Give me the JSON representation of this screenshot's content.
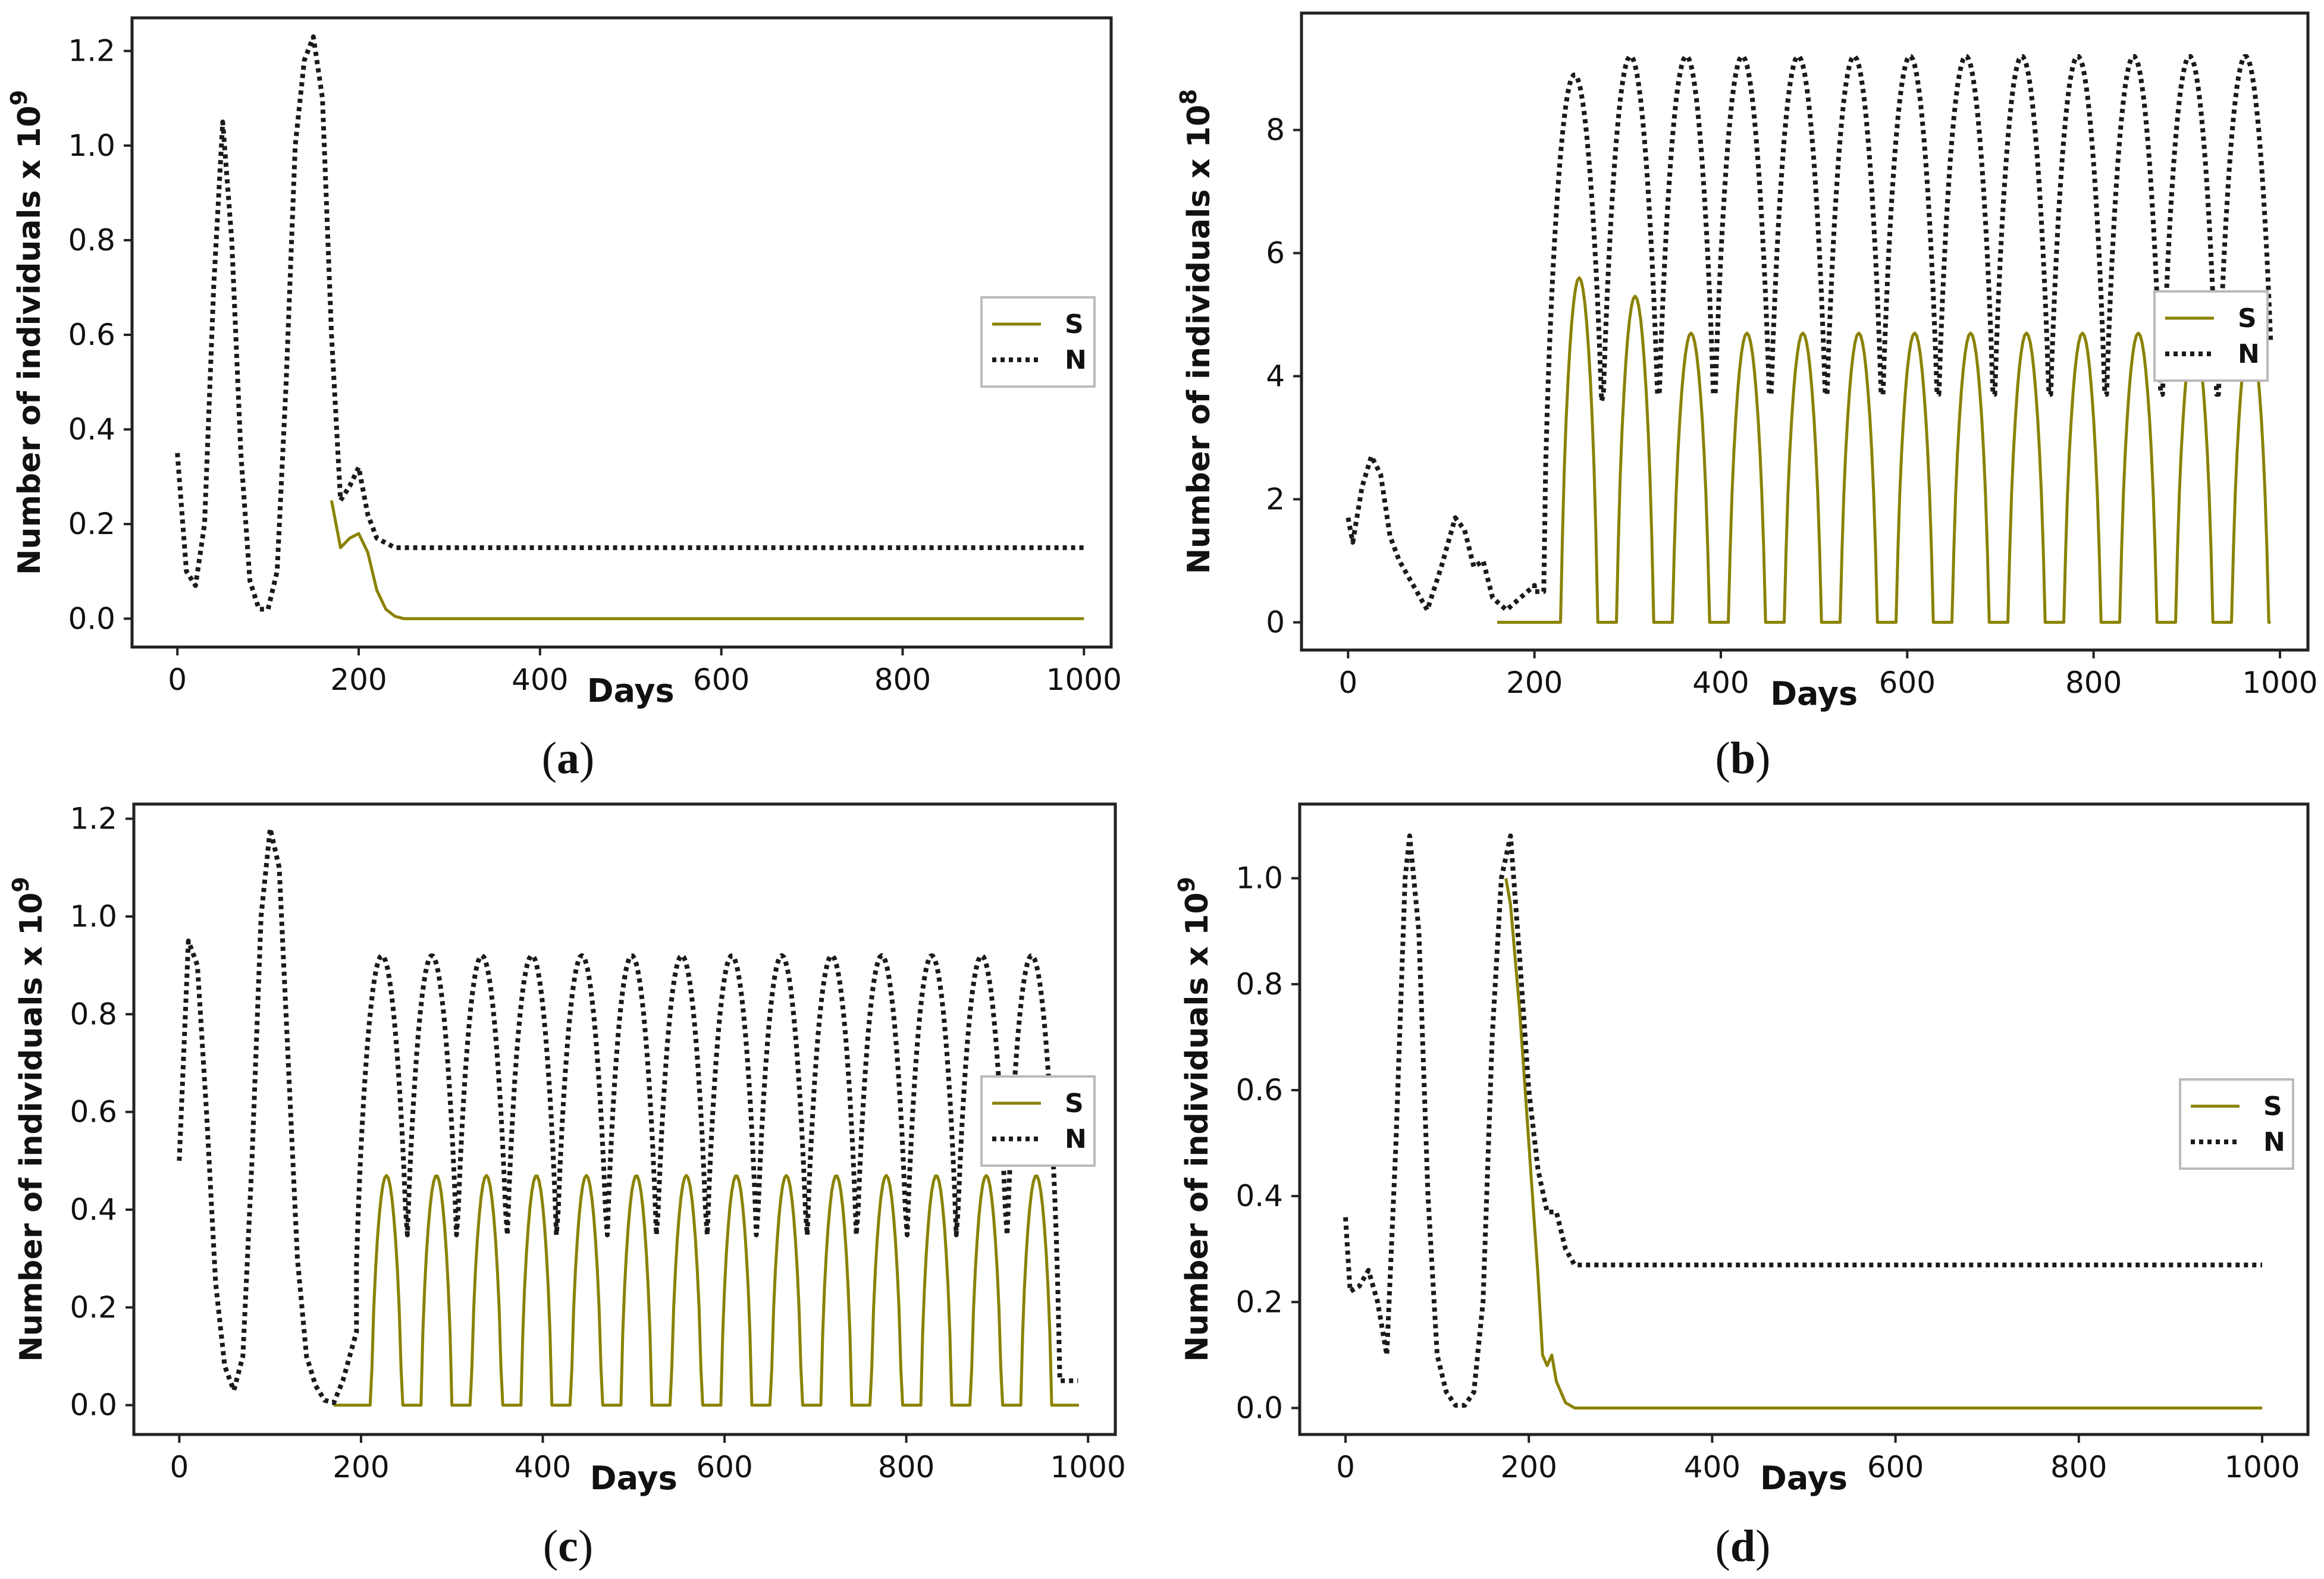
{
  "colors": {
    "series_S": "#8a8200",
    "series_N": "#1a1a1a",
    "axis": "#222222",
    "background": "#ffffff"
  },
  "chart_data": [
    {
      "type": "line",
      "panel": "(a)",
      "xlabel": "Days",
      "ylabel": "Number of individuals",
      "yscale_label": "x 10",
      "yscale_exp": "9",
      "xlim": [
        -50,
        1030
      ],
      "ylim": [
        -0.06,
        1.27
      ],
      "xticks": [
        0,
        200,
        400,
        600,
        800,
        1000
      ],
      "yticks": [
        0.0,
        0.2,
        0.4,
        0.6,
        0.8,
        1.0,
        1.2
      ],
      "ytick_labels": [
        "0.0",
        "0.2",
        "0.4",
        "0.6",
        "0.8",
        "1.0",
        "1.2"
      ],
      "legend": {
        "position": "right",
        "labels": [
          "S",
          "N"
        ]
      },
      "series": [
        {
          "name": "S",
          "style": "solid",
          "x": [
            170,
            180,
            190,
            200,
            210,
            220,
            230,
            240,
            250,
            1000
          ],
          "y": [
            0.25,
            0.15,
            0.17,
            0.18,
            0.14,
            0.06,
            0.02,
            0.005,
            0.0,
            0.0
          ]
        },
        {
          "name": "N",
          "style": "dotted",
          "x": [
            0,
            10,
            20,
            30,
            40,
            50,
            60,
            70,
            80,
            90,
            100,
            110,
            120,
            130,
            140,
            150,
            160,
            170,
            180,
            190,
            200,
            210,
            220,
            240,
            260,
            300,
            1000
          ],
          "y": [
            0.35,
            0.1,
            0.07,
            0.2,
            0.7,
            1.05,
            0.8,
            0.35,
            0.08,
            0.02,
            0.02,
            0.1,
            0.5,
            1.0,
            1.18,
            1.23,
            1.1,
            0.6,
            0.25,
            0.28,
            0.32,
            0.22,
            0.17,
            0.15,
            0.15,
            0.15,
            0.15
          ]
        }
      ]
    },
    {
      "type": "line",
      "panel": "(b)",
      "xlabel": "Days",
      "ylabel": "Number of individuals",
      "yscale_label": "x 10",
      "yscale_exp": "8",
      "xlim": [
        -50,
        1030
      ],
      "ylim": [
        -0.45,
        9.9
      ],
      "xticks": [
        0,
        200,
        400,
        600,
        800,
        1000
      ],
      "yticks": [
        0,
        2,
        4,
        6,
        8
      ],
      "ytick_labels": [
        "0",
        "2",
        "4",
        "6",
        "8"
      ],
      "legend": {
        "position": "right",
        "labels": [
          "S",
          "N"
        ]
      },
      "series": [
        {
          "name": "S",
          "style": "solid",
          "x": [],
          "y": []
        },
        {
          "name": "N",
          "style": "dotted",
          "x": [
            0,
            5,
            15,
            25,
            35,
            45,
            55,
            70,
            85,
            100,
            115,
            125,
            135,
            145,
            155,
            170,
            200
          ],
          "y": [
            1.7,
            1.3,
            2.2,
            2.7,
            2.4,
            1.4,
            1.0,
            0.6,
            0.2,
            0.9,
            1.7,
            1.5,
            0.9,
            1.0,
            0.4,
            0.2,
            0.6
          ]
        }
      ]
    },
    {
      "type": "line",
      "panel": "(c)",
      "xlabel": "Days",
      "ylabel": "Number of individuals",
      "yscale_label": "x 10",
      "yscale_exp": "9",
      "xlim": [
        -50,
        1030
      ],
      "ylim": [
        -0.06,
        1.23
      ],
      "xticks": [
        0,
        200,
        400,
        600,
        800,
        1000
      ],
      "yticks": [
        0.0,
        0.2,
        0.4,
        0.6,
        0.8,
        1.0,
        1.2
      ],
      "ytick_labels": [
        "0.0",
        "0.2",
        "0.4",
        "0.6",
        "0.8",
        "1.0",
        "1.2"
      ],
      "legend": {
        "position": "right",
        "labels": [
          "S",
          "N"
        ]
      },
      "series": [
        {
          "name": "S",
          "style": "solid",
          "x": [],
          "y": []
        },
        {
          "name": "N",
          "style": "dotted",
          "x": [
            0,
            10,
            20,
            30,
            40,
            50,
            60,
            70,
            80,
            90,
            100,
            110,
            120,
            130,
            140,
            150,
            160,
            170,
            180,
            195
          ],
          "y": [
            0.5,
            0.95,
            0.9,
            0.6,
            0.25,
            0.08,
            0.03,
            0.1,
            0.5,
            1.0,
            1.18,
            1.1,
            0.7,
            0.3,
            0.1,
            0.04,
            0.01,
            0.005,
            0.05,
            0.15
          ]
        }
      ]
    },
    {
      "type": "line",
      "panel": "(d)",
      "xlabel": "Days",
      "ylabel": "Number of individuals",
      "yscale_label": "x 10",
      "yscale_exp": "9",
      "xlim": [
        -50,
        1050
      ],
      "ylim": [
        -0.05,
        1.14
      ],
      "xticks": [
        0,
        200,
        400,
        600,
        800,
        1000
      ],
      "yticks": [
        0.0,
        0.2,
        0.4,
        0.6,
        0.8,
        1.0
      ],
      "ytick_labels": [
        "0.0",
        "0.2",
        "0.4",
        "0.6",
        "0.8",
        "1.0"
      ],
      "legend": {
        "position": "right",
        "labels": [
          "S",
          "N"
        ]
      },
      "series": [
        {
          "name": "S",
          "style": "solid",
          "x": [
            175,
            180,
            190,
            200,
            210,
            215,
            220,
            225,
            230,
            240,
            250,
            1000
          ],
          "y": [
            1.0,
            0.95,
            0.75,
            0.5,
            0.25,
            0.1,
            0.08,
            0.1,
            0.05,
            0.01,
            0.0,
            0.0
          ]
        },
        {
          "name": "N",
          "style": "dotted",
          "x": [
            0,
            5,
            15,
            25,
            35,
            45,
            55,
            65,
            70,
            80,
            90,
            100,
            110,
            120,
            130,
            140,
            150,
            160,
            170,
            180,
            190,
            200,
            210,
            220,
            230,
            240,
            250,
            300,
            1000
          ],
          "y": [
            0.36,
            0.22,
            0.23,
            0.26,
            0.2,
            0.1,
            0.5,
            1.0,
            1.08,
            0.9,
            0.4,
            0.1,
            0.03,
            0.005,
            0.005,
            0.03,
            0.2,
            0.7,
            1.0,
            1.08,
            0.85,
            0.6,
            0.45,
            0.37,
            0.37,
            0.3,
            0.27,
            0.27,
            0.27
          ]
        }
      ]
    }
  ],
  "captions": {
    "a_open": "(",
    "a_letter": "a",
    "a_close": ")",
    "b_open": "(",
    "b_letter": "b",
    "b_close": ")",
    "c_open": "(",
    "c_letter": "c",
    "c_close": ")",
    "d_open": "(",
    "d_letter": "d",
    "d_close": ")"
  }
}
